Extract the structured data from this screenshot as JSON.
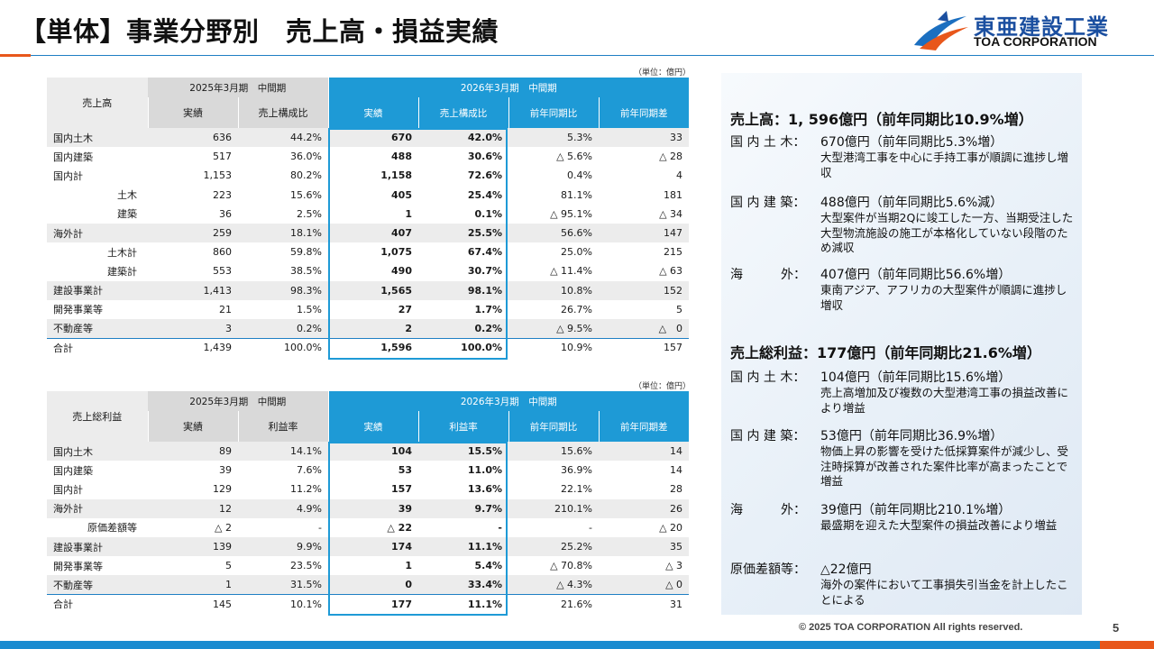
{
  "page": {
    "title": "【単体】事業分野別　売上高・損益実績",
    "logo_jp": "東亜建設工業",
    "logo_en": "TOA CORPORATION",
    "copyright": "© 2025 TOA CORPORATION  All rights reserved.",
    "page_number": "5",
    "unit_label": "（単位：億円）"
  },
  "colors": {
    "accent_blue": "#1e9ad6",
    "accent_orange": "#e8571b",
    "brand_navy": "#1b4fa0"
  },
  "sales_table": {
    "corner": "売上高",
    "period_prev": "2025年3月期　中間期",
    "period_curr": "2026年3月期　中間期",
    "cols": [
      "実績",
      "売上構成比",
      "実績",
      "売上構成比",
      "前年同期比",
      "前年同期差"
    ],
    "rows": [
      {
        "label": "国内土木",
        "c1": "636",
        "c2": "44.2%",
        "c3": "670",
        "c4": "42.0%",
        "c5": "5.3%",
        "c6": "33"
      },
      {
        "label": "国内建築",
        "c1": "517",
        "c2": "36.0%",
        "c3": "488",
        "c4": "30.6%",
        "c5": "△ 5.6%",
        "c6": "△ 28"
      },
      {
        "label": "国内計",
        "c1": "1,153",
        "c2": "80.2%",
        "c3": "1,158",
        "c4": "72.6%",
        "c5": "0.4%",
        "c6": "4"
      },
      {
        "label": "土木",
        "c1": "223",
        "c2": "15.6%",
        "c3": "405",
        "c4": "25.4%",
        "c5": "81.1%",
        "c6": "181"
      },
      {
        "label": "建築",
        "c1": "36",
        "c2": "2.5%",
        "c3": "1",
        "c4": "0.1%",
        "c5": "△ 95.1%",
        "c6": "△ 34"
      },
      {
        "label": "海外計",
        "c1": "259",
        "c2": "18.1%",
        "c3": "407",
        "c4": "25.5%",
        "c5": "56.6%",
        "c6": "147"
      },
      {
        "label": "土木計",
        "c1": "860",
        "c2": "59.8%",
        "c3": "1,075",
        "c4": "67.4%",
        "c5": "25.0%",
        "c6": "215"
      },
      {
        "label": "建築計",
        "c1": "553",
        "c2": "38.5%",
        "c3": "490",
        "c4": "30.7%",
        "c5": "△ 11.4%",
        "c6": "△ 63"
      },
      {
        "label": "建設事業計",
        "c1": "1,413",
        "c2": "98.3%",
        "c3": "1,565",
        "c4": "98.1%",
        "c5": "10.8%",
        "c6": "152"
      },
      {
        "label": "開発事業等",
        "c1": "21",
        "c2": "1.5%",
        "c3": "27",
        "c4": "1.7%",
        "c5": "26.7%",
        "c6": "5"
      },
      {
        "label": "不動産等",
        "c1": "3",
        "c2": "0.2%",
        "c3": "2",
        "c4": "0.2%",
        "c5": "△ 9.5%",
        "c6": "△　0"
      },
      {
        "label": "合計",
        "c1": "1,439",
        "c2": "100.0%",
        "c3": "1,596",
        "c4": "100.0%",
        "c5": "10.9%",
        "c6": "157"
      }
    ]
  },
  "profit_table": {
    "corner": "売上総利益",
    "period_prev": "2025年3月期　中間期",
    "period_curr": "2026年3月期　中間期",
    "cols": [
      "実績",
      "利益率",
      "実績",
      "利益率",
      "前年同期比",
      "前年同期差"
    ],
    "rows": [
      {
        "label": "国内土木",
        "c1": "89",
        "c2": "14.1%",
        "c3": "104",
        "c4": "15.5%",
        "c5": "15.6%",
        "c6": "14"
      },
      {
        "label": "国内建築",
        "c1": "39",
        "c2": "7.6%",
        "c3": "53",
        "c4": "11.0%",
        "c5": "36.9%",
        "c6": "14"
      },
      {
        "label": "国内計",
        "c1": "129",
        "c2": "11.2%",
        "c3": "157",
        "c4": "13.6%",
        "c5": "22.1%",
        "c6": "28"
      },
      {
        "label": "海外計",
        "c1": "12",
        "c2": "4.9%",
        "c3": "39",
        "c4": "9.7%",
        "c5": "210.1%",
        "c6": "26"
      },
      {
        "label": "原価差額等",
        "c1": "△ 2",
        "c2": "-",
        "c3": "△ 22",
        "c4": "-",
        "c5": "-",
        "c6": "△ 20"
      },
      {
        "label": "建設事業計",
        "c1": "139",
        "c2": "9.9%",
        "c3": "174",
        "c4": "11.1%",
        "c5": "25.2%",
        "c6": "35"
      },
      {
        "label": "開発事業等",
        "c1": "5",
        "c2": "23.5%",
        "c3": "1",
        "c4": "5.4%",
        "c5": "△ 70.8%",
        "c6": "△ 3"
      },
      {
        "label": "不動産等",
        "c1": "1",
        "c2": "31.5%",
        "c3": "0",
        "c4": "33.4%",
        "c5": "△ 4.3%",
        "c6": "△ 0"
      },
      {
        "label": "合計",
        "c1": "145",
        "c2": "10.1%",
        "c3": "177",
        "c4": "11.1%",
        "c5": "21.6%",
        "c6": "31"
      }
    ]
  },
  "commentary": {
    "sales_head": "売上高：1, 596億円（前年同期比10.9%増）",
    "sales_items": [
      {
        "label": "国 内 土 木：",
        "value": "670億円（前年同期比5.3%増）",
        "desc": "大型港湾工事を中心に手持工事が順調に進捗し増収"
      },
      {
        "label": "国 内 建 築：",
        "value": "488億円（前年同期比5.6%減）",
        "desc": "大型案件が当期2Qに竣工した一方、当期受注した大型物流施設の施工が本格化していない段階のため減収"
      },
      {
        "label": "海　　　外：",
        "value": "407億円（前年同期比56.6%増）",
        "desc": "東南アジア、アフリカの大型案件が順調に進捗し増収"
      }
    ],
    "profit_head": "売上総利益：177億円（前年同期比21.6%増）",
    "profit_items": [
      {
        "label": "国 内 土 木：",
        "value": "104億円（前年同期比15.6%増）",
        "desc": "売上高増加及び複数の大型港湾工事の損益改善により増益"
      },
      {
        "label": "国 内 建 築：",
        "value": "53億円（前年同期比36.9%増）",
        "desc": "物価上昇の影響を受けた低採算案件が減少し、受注時採算が改善された案件比率が高まったことで増益"
      },
      {
        "label": "海　　　外：",
        "value": "39億円（前年同期比210.1%増）",
        "desc": "最盛期を迎えた大型案件の損益改善により増益"
      },
      {
        "label": "原価差額等：",
        "value": "△22億円",
        "desc": "海外の案件において工事損失引当金を計上したことによる"
      }
    ]
  }
}
